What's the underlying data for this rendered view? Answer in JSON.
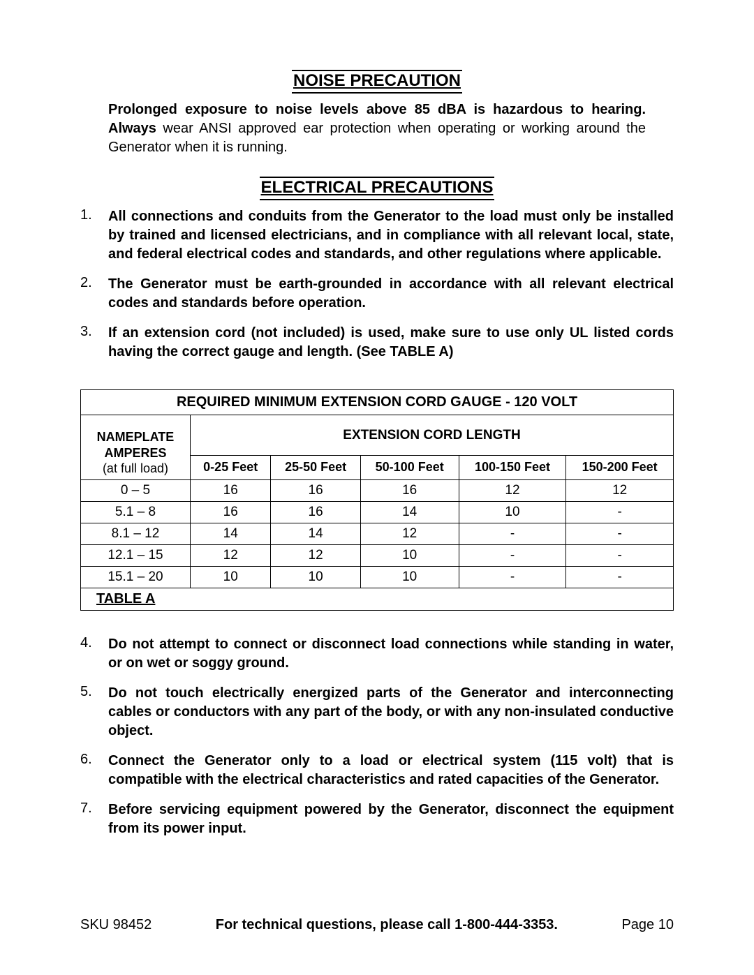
{
  "noise": {
    "heading": "NOISE PRECAUTION",
    "bold_part1": "Prolonged exposure to noise levels above 85 dBA is hazardous to hearing. Always",
    "rest": " wear ANSI approved ear protection when operating or working around the Generator when it is running."
  },
  "electrical": {
    "heading": "ELECTRICAL PRECAUTIONS",
    "items_top": [
      {
        "num": "1.",
        "text": "All connections and conduits from the Generator to the load must only be installed by trained and licensed electricians, and in compliance with all relevant local, state, and federal electrical codes and standards, and other regulations where applicable."
      },
      {
        "num": "2.",
        "text": "The Generator must be earth-grounded in accordance with all relevant electrical codes and standards before operation."
      },
      {
        "num": "3.",
        "text": "If an extension cord (not included) is used, make sure to use only UL listed cords having the correct gauge and length.  (See TABLE A)"
      }
    ],
    "items_bottom": [
      {
        "num": "4.",
        "text": "Do not attempt to connect or disconnect load connections while standing in water, or on wet or soggy ground."
      },
      {
        "num": "5.",
        "text": "Do not touch electrically energized parts of the Generator and interconnecting cables or conductors with any part of the body, or with any non-insulated conductive object."
      },
      {
        "num": "6.",
        "text": "Connect the Generator only to a load or electrical system (115 volt) that is compatible with the electrical characteristics and rated capacities of the Generator."
      },
      {
        "num": "7.",
        "text": "Before servicing equipment powered by the Generator, disconnect the equipment from its power input."
      }
    ]
  },
  "table": {
    "title": "REQUIRED MINIMUM EXTENSION CORD GAUGE - 120 VOLT",
    "amperes_line1": "NAMEPLATE",
    "amperes_line2": "AMPERES",
    "amperes_sub": "(at full load)",
    "length_header": "EXTENSION CORD LENGTH",
    "columns": [
      "0-25 Feet",
      "25-50 Feet",
      "50-100 Feet",
      "100-150 Feet",
      "150-200 Feet"
    ],
    "rows": [
      {
        "amp": "0 – 5",
        "vals": [
          "16",
          "16",
          "16",
          "12",
          "12"
        ]
      },
      {
        "amp": "5.1 – 8",
        "vals": [
          "16",
          "16",
          "14",
          "10",
          "-"
        ]
      },
      {
        "amp": "8.1 – 12",
        "vals": [
          "14",
          "14",
          "12",
          "-",
          "-"
        ]
      },
      {
        "amp": "12.1 – 15",
        "vals": [
          "12",
          "12",
          "10",
          "-",
          "-"
        ]
      },
      {
        "amp": "15.1 – 20",
        "vals": [
          "10",
          "10",
          "10",
          "-",
          "-"
        ]
      }
    ],
    "label": "TABLE A"
  },
  "footer": {
    "left": "SKU 98452",
    "center": "For technical questions, please call 1-800-444-3353.",
    "right": "Page 10"
  }
}
